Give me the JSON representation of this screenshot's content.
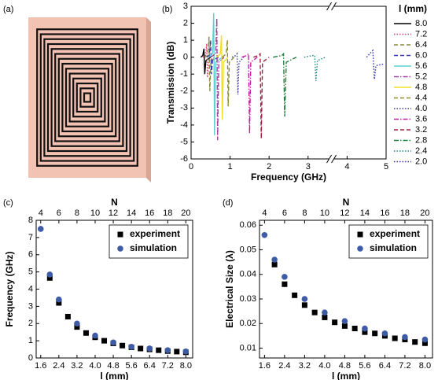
{
  "chart_data": [
    {
      "type": "image",
      "label": "(a)"
    },
    {
      "type": "line",
      "label": "(b)",
      "xlabel": "Frequency (GHz)",
      "ylabel": "Transmission (dB)",
      "xlim": [
        0,
        5
      ],
      "xticks": [
        0,
        1,
        2,
        3,
        4,
        5
      ],
      "ylim": [
        -6,
        3
      ],
      "yticks": [
        -6,
        -5,
        -4,
        -3,
        -2,
        -1,
        0,
        1,
        2,
        3
      ],
      "axis_break": true,
      "legend": "outside right",
      "legend_title": "l (mm)",
      "series": [
        {
          "name": "8.0",
          "color": "#000000",
          "dash": "solid",
          "x": [
            0.25,
            0.3,
            0.33,
            0.35,
            0.38,
            0.5
          ],
          "values": [
            0,
            0.1,
            0.5,
            -1,
            -0.2,
            0
          ]
        },
        {
          "name": "7.2",
          "color": "#e03c7a",
          "dash": "dot",
          "x": [
            0.3,
            0.37,
            0.4,
            0.42,
            0.45,
            0.6
          ],
          "values": [
            0,
            0.1,
            0.8,
            -1.2,
            -0.2,
            0
          ]
        },
        {
          "name": "6.4",
          "color": "#8a8a3a",
          "dash": "dash",
          "x": [
            0.35,
            0.43,
            0.46,
            0.48,
            0.51,
            0.65
          ],
          "values": [
            0,
            0.1,
            1.2,
            -2,
            -0.2,
            0
          ]
        },
        {
          "name": "6.0",
          "color": "#3a3ab0",
          "dash": "dash",
          "x": [
            0.4,
            0.47,
            0.5,
            0.52,
            0.55,
            0.7
          ],
          "values": [
            0,
            0.1,
            1,
            -1,
            -0.2,
            0
          ]
        },
        {
          "name": "5.6",
          "color": "#60d0d0",
          "dash": "solid",
          "x": [
            0.45,
            0.55,
            0.58,
            0.6,
            0.63,
            0.8
          ],
          "values": [
            0,
            0.2,
            2.6,
            -4.6,
            -0.3,
            0
          ]
        },
        {
          "name": "5.2",
          "color": "#a040a0",
          "dash": "dashdot",
          "x": [
            0.5,
            0.63,
            0.66,
            0.68,
            0.71,
            0.85
          ],
          "values": [
            0,
            0.2,
            2.3,
            -4.9,
            -0.3,
            0
          ]
        },
        {
          "name": "4.8",
          "color": "#f0e020",
          "dash": "solid",
          "x": [
            0.65,
            0.75,
            0.78,
            0.8,
            0.83,
            0.95
          ],
          "values": [
            0,
            0.2,
            1.3,
            -3.7,
            -0.3,
            0
          ]
        },
        {
          "name": "4.4",
          "color": "#8a8a30",
          "dash": "dash",
          "x": [
            0.8,
            0.9,
            0.93,
            0.95,
            0.98,
            1.1
          ],
          "values": [
            0,
            0.2,
            1,
            -2.9,
            -0.3,
            0
          ]
        },
        {
          "name": "4.0",
          "color": "#4040a0",
          "dash": "dot",
          "x": [
            1.05,
            1.15,
            1.18,
            1.2,
            1.23,
            1.35
          ],
          "values": [
            0,
            0.1,
            0.2,
            -2.2,
            -0.3,
            0
          ]
        },
        {
          "name": "3.6",
          "color": "#c020a0",
          "dash": "dashdot",
          "x": [
            1.3,
            1.43,
            1.47,
            1.5,
            1.53,
            1.7
          ],
          "values": [
            0,
            0.1,
            0.2,
            -4.5,
            -0.3,
            0
          ]
        },
        {
          "name": "3.2",
          "color": "#a02040",
          "dash": "dash",
          "x": [
            1.6,
            1.73,
            1.77,
            1.8,
            1.83,
            2.0
          ],
          "values": [
            0,
            0.1,
            0.2,
            -4.8,
            -0.3,
            0
          ]
        },
        {
          "name": "2.8",
          "color": "#208040",
          "dash": "dashdot",
          "x": [
            2.1,
            2.33,
            2.37,
            2.4,
            2.44,
            2.7
          ],
          "values": [
            0,
            0.1,
            0.2,
            -3.5,
            -0.3,
            0
          ]
        },
        {
          "name": "2.4",
          "color": "#208080",
          "dash": "dot",
          "x": [
            2.9,
            3.13,
            3.17,
            3.2,
            3.24,
            3.45
          ],
          "values": [
            0,
            0.1,
            0.1,
            -1.4,
            -0.2,
            0
          ]
        },
        {
          "name": "2.0",
          "color": "#3030c0",
          "dash": "dot",
          "x": [
            4.5,
            4.62,
            4.66,
            4.7,
            4.74,
            4.95
          ],
          "values": [
            0,
            0.3,
            0.4,
            -1.3,
            -0.5,
            -0.4
          ]
        }
      ]
    },
    {
      "type": "scatter",
      "label": "(c)",
      "xlabel": "l (mm)",
      "ylabel": "Frequency (GHz)",
      "x2label": "N",
      "x": [
        1.6,
        2.0,
        2.4,
        2.8,
        3.2,
        3.6,
        4.0,
        4.4,
        4.8,
        5.2,
        5.6,
        6.0,
        6.4,
        6.8,
        7.2,
        7.6,
        8.0
      ],
      "xlim": [
        1.4,
        8.3
      ],
      "xticks": [
        1.6,
        2.4,
        3.2,
        {
          "value": 4,
          "label": "4.0"
        },
        4.8,
        5.6,
        6.4,
        7.2,
        {
          "value": 8,
          "label": "8.0"
        }
      ],
      "x2lim": [
        3.5,
        20.75
      ],
      "x2ticks": [
        4,
        6,
        8,
        10,
        12,
        14,
        16,
        18,
        20
      ],
      "ylim": [
        0,
        8
      ],
      "yticks": [
        0,
        1,
        2,
        3,
        4,
        5,
        6,
        7,
        8
      ],
      "legend": "upper right",
      "series": [
        {
          "name": "experiment",
          "color": "#000000",
          "marker": "square",
          "values": [
            null,
            4.65,
            3.2,
            2.4,
            1.8,
            1.45,
            1.2,
            1.0,
            0.85,
            0.72,
            0.62,
            0.55,
            0.5,
            0.45,
            0.4,
            0.37,
            0.33
          ]
        },
        {
          "name": "simulation",
          "color": "#3e5ca6",
          "marker": "circle",
          "values": [
            7.5,
            4.85,
            3.4,
            null,
            2.0,
            null,
            1.3,
            null,
            0.9,
            null,
            0.65,
            null,
            0.55,
            null,
            0.45,
            null,
            0.38
          ]
        }
      ]
    },
    {
      "type": "scatter",
      "label": "(d)",
      "xlabel": "l (mm)",
      "ylabel": "Electrical Size (λ)",
      "x2label": "N",
      "x": [
        1.6,
        2.0,
        2.4,
        2.8,
        3.2,
        3.6,
        4.0,
        4.4,
        4.8,
        5.2,
        5.6,
        6.0,
        6.4,
        6.8,
        7.2,
        7.6,
        8.0
      ],
      "xlim": [
        1.4,
        8.3
      ],
      "xticks": [
        1.6,
        2.4,
        3.2,
        {
          "value": 4,
          "label": "4.0"
        },
        4.8,
        5.6,
        6.4,
        7.2,
        {
          "value": 8,
          "label": "8.0"
        }
      ],
      "x2lim": [
        3.5,
        20.75
      ],
      "x2ticks": [
        4,
        6,
        8,
        10,
        12,
        14,
        16,
        18,
        20
      ],
      "ylim": [
        0.006,
        0.062
      ],
      "yticks": [
        0.01,
        0.02,
        0.03,
        0.04,
        0.05,
        0.06
      ],
      "legend": "upper right",
      "series": [
        {
          "name": "experiment",
          "color": "#000000",
          "marker": "square",
          "values": [
            null,
            0.044,
            0.036,
            0.0315,
            0.0275,
            0.0245,
            0.0225,
            0.0205,
            0.019,
            0.018,
            0.0165,
            0.016,
            0.015,
            0.014,
            0.0135,
            0.0125,
            0.012
          ]
        },
        {
          "name": "simulation",
          "color": "#3e5ca6",
          "marker": "circle",
          "values": [
            0.056,
            0.046,
            0.039,
            null,
            0.03,
            null,
            0.0245,
            null,
            0.021,
            null,
            0.018,
            null,
            0.016,
            null,
            0.0145,
            null,
            0.0135
          ]
        }
      ]
    }
  ]
}
